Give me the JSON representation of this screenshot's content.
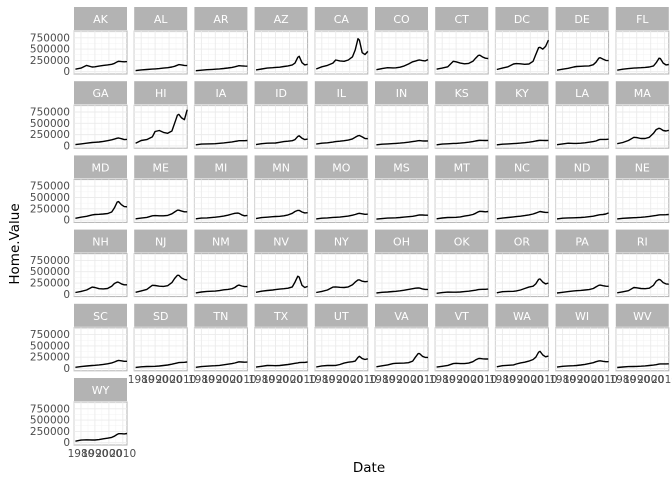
{
  "chart_data": {
    "type": "line",
    "facet": "state",
    "xlabel": "Date",
    "ylabel": "Home.Value",
    "xlim": [
      1975,
      2013
    ],
    "ylim": [
      -50000,
      900000
    ],
    "y_ticks": [
      0,
      250000,
      500000,
      750000
    ],
    "y_tick_labels": [
      "0",
      "250000",
      "500000",
      "750000"
    ],
    "x_ticks": [
      1980,
      1990,
      2000,
      2010
    ],
    "x_tick_labels": [
      "1980",
      "1990",
      "2000",
      "2010"
    ],
    "grid": true,
    "x": [
      1976,
      1980,
      1984,
      1988,
      1990,
      1993,
      1996,
      1999,
      2002,
      2004,
      2006,
      2007,
      2009,
      2011,
      2013
    ],
    "series": [
      {
        "name": "AK",
        "values": [
          55000,
          80000,
          140000,
          105000,
          110000,
          125000,
          140000,
          150000,
          165000,
          185000,
          220000,
          230000,
          225000,
          220000,
          225000
        ]
      },
      {
        "name": "AL",
        "values": [
          25000,
          40000,
          50000,
          58000,
          62000,
          70000,
          80000,
          90000,
          105000,
          120000,
          145000,
          158000,
          150000,
          140000,
          135000
        ]
      },
      {
        "name": "AR",
        "values": [
          22000,
          35000,
          45000,
          52000,
          55000,
          62000,
          72000,
          82000,
          95000,
          108000,
          125000,
          133000,
          130000,
          125000,
          122000
        ]
      },
      {
        "name": "AZ",
        "values": [
          40000,
          60000,
          80000,
          90000,
          95000,
          100000,
          115000,
          130000,
          150000,
          190000,
          320000,
          340000,
          200000,
          150000,
          165000
        ]
      },
      {
        "name": "CA",
        "values": [
          60000,
          110000,
          140000,
          190000,
          260000,
          240000,
          230000,
          260000,
          330000,
          480000,
          730000,
          700000,
          420000,
          380000,
          450000
        ]
      },
      {
        "name": "CO",
        "values": [
          45000,
          70000,
          90000,
          85000,
          88000,
          100000,
          130000,
          170000,
          220000,
          235000,
          255000,
          260000,
          245000,
          240000,
          265000
        ]
      },
      {
        "name": "CT",
        "values": [
          55000,
          80000,
          110000,
          230000,
          220000,
          190000,
          175000,
          185000,
          230000,
          300000,
          360000,
          365000,
          325000,
          300000,
          290000
        ]
      },
      {
        "name": "DC",
        "values": [
          50000,
          80000,
          110000,
          170000,
          180000,
          175000,
          165000,
          170000,
          230000,
          380000,
          530000,
          540000,
          500000,
          560000,
          700000
        ]
      },
      {
        "name": "DE",
        "values": [
          35000,
          55000,
          75000,
          105000,
          115000,
          120000,
          125000,
          130000,
          155000,
          210000,
          300000,
          310000,
          280000,
          250000,
          245000
        ]
      },
      {
        "name": "FL",
        "values": [
          35000,
          55000,
          70000,
          80000,
          85000,
          90000,
          95000,
          105000,
          130000,
          200000,
          300000,
          290000,
          190000,
          150000,
          160000
        ]
      },
      {
        "name": "GA",
        "values": [
          30000,
          45000,
          60000,
          75000,
          80000,
          88000,
          100000,
          115000,
          135000,
          150000,
          170000,
          175000,
          160000,
          140000,
          145000
        ]
      },
      {
        "name": "HI",
        "values": [
          60000,
          120000,
          140000,
          200000,
          320000,
          340000,
          300000,
          280000,
          330000,
          500000,
          680000,
          700000,
          620000,
          580000,
          800000
        ]
      },
      {
        "name": "IA",
        "values": [
          25000,
          40000,
          45000,
          48000,
          50000,
          58000,
          68000,
          78000,
          90000,
          100000,
          110000,
          115000,
          115000,
          115000,
          120000
        ]
      },
      {
        "name": "ID",
        "values": [
          30000,
          50000,
          60000,
          62000,
          65000,
          80000,
          95000,
          105000,
          115000,
          140000,
          210000,
          225000,
          170000,
          140000,
          150000
        ]
      },
      {
        "name": "IL",
        "values": [
          40000,
          60000,
          70000,
          85000,
          95000,
          105000,
          115000,
          130000,
          155000,
          190000,
          225000,
          230000,
          200000,
          165000,
          160000
        ]
      },
      {
        "name": "IN",
        "values": [
          25000,
          38000,
          45000,
          52000,
          55000,
          62000,
          72000,
          82000,
          95000,
          105000,
          115000,
          118000,
          112000,
          110000,
          112000
        ]
      },
      {
        "name": "KS",
        "values": [
          25000,
          40000,
          48000,
          55000,
          57000,
          63000,
          72000,
          82000,
          95000,
          108000,
          120000,
          125000,
          122000,
          120000,
          122000
        ]
      },
      {
        "name": "KY",
        "values": [
          25000,
          38000,
          45000,
          52000,
          55000,
          62000,
          72000,
          82000,
          95000,
          108000,
          120000,
          125000,
          122000,
          120000,
          122000
        ]
      },
      {
        "name": "LA",
        "values": [
          28000,
          45000,
          60000,
          55000,
          55000,
          60000,
          70000,
          82000,
          95000,
          110000,
          135000,
          145000,
          145000,
          145000,
          148000
        ]
      },
      {
        "name": "MA",
        "values": [
          50000,
          75000,
          120000,
          190000,
          185000,
          165000,
          165000,
          190000,
          280000,
          360000,
          390000,
          380000,
          340000,
          330000,
          345000
        ]
      },
      {
        "name": "MD",
        "values": [
          40000,
          65000,
          85000,
          115000,
          125000,
          130000,
          135000,
          145000,
          180000,
          270000,
          400000,
          410000,
          340000,
          300000,
          295000
        ]
      },
      {
        "name": "ME",
        "values": [
          30000,
          45000,
          60000,
          95000,
          100000,
          95000,
          95000,
          105000,
          140000,
          180000,
          220000,
          220000,
          200000,
          185000,
          185000
        ]
      },
      {
        "name": "MI",
        "values": [
          30000,
          45000,
          50000,
          60000,
          65000,
          75000,
          90000,
          110000,
          135000,
          150000,
          155000,
          150000,
          115000,
          95000,
          105000
        ]
      },
      {
        "name": "MN",
        "values": [
          35000,
          55000,
          65000,
          75000,
          80000,
          85000,
          95000,
          115000,
          150000,
          190000,
          215000,
          215000,
          180000,
          160000,
          165000
        ]
      },
      {
        "name": "MO",
        "values": [
          28000,
          42000,
          50000,
          60000,
          62000,
          68000,
          78000,
          90000,
          108000,
          125000,
          145000,
          150000,
          140000,
          130000,
          132000
        ]
      },
      {
        "name": "MS",
        "values": [
          22000,
          35000,
          45000,
          50000,
          52000,
          58000,
          66000,
          75000,
          85000,
          95000,
          110000,
          115000,
          113000,
          110000,
          110000
        ]
      },
      {
        "name": "MT",
        "values": [
          30000,
          48000,
          58000,
          60000,
          62000,
          72000,
          90000,
          105000,
          125000,
          150000,
          185000,
          195000,
          190000,
          185000,
          190000
        ]
      },
      {
        "name": "NC",
        "values": [
          30000,
          45000,
          58000,
          72000,
          78000,
          88000,
          100000,
          115000,
          135000,
          155000,
          180000,
          190000,
          180000,
          170000,
          170000
        ]
      },
      {
        "name": "ND",
        "values": [
          28000,
          42000,
          50000,
          52000,
          53000,
          58000,
          65000,
          75000,
          88000,
          100000,
          115000,
          120000,
          125000,
          135000,
          160000
        ]
      },
      {
        "name": "NE",
        "values": [
          28000,
          40000,
          48000,
          53000,
          56000,
          62000,
          72000,
          82000,
          95000,
          105000,
          115000,
          118000,
          118000,
          120000,
          125000
        ]
      },
      {
        "name": "NH",
        "values": [
          40000,
          65000,
          95000,
          160000,
          150000,
          125000,
          120000,
          130000,
          180000,
          240000,
          270000,
          265000,
          230000,
          210000,
          210000
        ]
      },
      {
        "name": "NJ",
        "values": [
          45000,
          75000,
          110000,
          200000,
          195000,
          180000,
          175000,
          190000,
          260000,
          350000,
          420000,
          420000,
          360000,
          330000,
          320000
        ]
      },
      {
        "name": "NM",
        "values": [
          32000,
          52000,
          65000,
          70000,
          72000,
          82000,
          100000,
          110000,
          125000,
          150000,
          195000,
          205000,
          185000,
          170000,
          170000
        ]
      },
      {
        "name": "NV",
        "values": [
          45000,
          70000,
          85000,
          95000,
          105000,
          115000,
          125000,
          135000,
          165000,
          270000,
          400000,
          380000,
          200000,
          150000,
          175000
        ]
      },
      {
        "name": "NY",
        "values": [
          40000,
          65000,
          95000,
          160000,
          165000,
          155000,
          150000,
          165000,
          210000,
          270000,
          320000,
          320000,
          290000,
          280000,
          285000
        ]
      },
      {
        "name": "OH",
        "values": [
          30000,
          45000,
          52000,
          62000,
          68000,
          78000,
          92000,
          108000,
          125000,
          135000,
          140000,
          138000,
          120000,
          108000,
          108000
        ]
      },
      {
        "name": "OK",
        "values": [
          22000,
          38000,
          50000,
          48000,
          48000,
          52000,
          60000,
          70000,
          82000,
          92000,
          105000,
          110000,
          112000,
          112000,
          115000
        ]
      },
      {
        "name": "OR",
        "values": [
          35000,
          58000,
          65000,
          68000,
          75000,
          95000,
          130000,
          160000,
          180000,
          230000,
          330000,
          340000,
          270000,
          230000,
          250000
        ]
      },
      {
        "name": "PA",
        "values": [
          30000,
          45000,
          60000,
          75000,
          80000,
          88000,
          95000,
          105000,
          130000,
          165000,
          200000,
          205000,
          190000,
          180000,
          178000
        ]
      },
      {
        "name": "RI",
        "values": [
          35000,
          55000,
          80000,
          150000,
          145000,
          130000,
          125000,
          135000,
          200000,
          290000,
          330000,
          320000,
          260000,
          230000,
          225000
        ]
      },
      {
        "name": "SC",
        "values": [
          28000,
          42000,
          55000,
          68000,
          72000,
          80000,
          92000,
          105000,
          125000,
          145000,
          170000,
          180000,
          170000,
          160000,
          160000
        ]
      },
      {
        "name": "SD",
        "values": [
          25000,
          38000,
          45000,
          48000,
          50000,
          56000,
          66000,
          78000,
          95000,
          110000,
          125000,
          132000,
          135000,
          138000,
          145000
        ]
      },
      {
        "name": "TN",
        "values": [
          28000,
          42000,
          52000,
          60000,
          63000,
          70000,
          82000,
          95000,
          110000,
          122000,
          140000,
          148000,
          145000,
          140000,
          142000
        ]
      },
      {
        "name": "TX",
        "values": [
          32000,
          50000,
          68000,
          65000,
          62000,
          68000,
          78000,
          90000,
          105000,
          115000,
          125000,
          132000,
          135000,
          135000,
          145000
        ]
      },
      {
        "name": "UT",
        "values": [
          35000,
          58000,
          68000,
          68000,
          70000,
          90000,
          120000,
          140000,
          150000,
          165000,
          245000,
          270000,
          220000,
          200000,
          215000
        ]
      },
      {
        "name": "VA",
        "values": [
          38000,
          60000,
          80000,
          110000,
          115000,
          118000,
          120000,
          130000,
          165000,
          250000,
          330000,
          330000,
          270000,
          245000,
          245000
        ]
      },
      {
        "name": "VT",
        "values": [
          32000,
          50000,
          70000,
          110000,
          115000,
          110000,
          110000,
          120000,
          150000,
          190000,
          220000,
          225000,
          215000,
          210000,
          210000
        ]
      },
      {
        "name": "WA",
        "values": [
          38000,
          62000,
          72000,
          80000,
          100000,
          125000,
          140000,
          165000,
          200000,
          250000,
          360000,
          380000,
          300000,
          260000,
          275000
        ]
      },
      {
        "name": "WI",
        "values": [
          32000,
          50000,
          58000,
          62000,
          66000,
          78000,
          92000,
          108000,
          130000,
          150000,
          168000,
          172000,
          160000,
          150000,
          150000
        ]
      },
      {
        "name": "WV",
        "values": [
          22000,
          35000,
          42000,
          45000,
          47000,
          52000,
          58000,
          66000,
          75000,
          85000,
          98000,
          102000,
          102000,
          102000,
          104000
        ]
      },
      {
        "name": "WY",
        "values": [
          35000,
          58000,
          65000,
          60000,
          60000,
          70000,
          88000,
          100000,
          118000,
          145000,
          185000,
          200000,
          200000,
          195000,
          205000
        ]
      }
    ]
  }
}
